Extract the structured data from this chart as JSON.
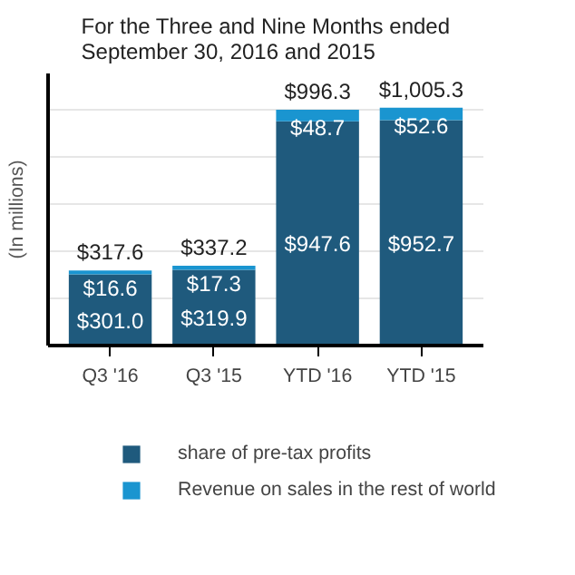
{
  "chart_data": {
    "type": "bar",
    "stacked": true,
    "title": "For the Three and Nine Months ended\nSeptember 30, 2016 and 2015",
    "ylabel": "(In millions)",
    "categories": [
      "Q3 '16",
      "Q3 '15",
      "YTD '16",
      "YTD '15"
    ],
    "series": [
      {
        "name": "share of pre-tax profits",
        "color": "#1f5a7d",
        "values": [
          301.0,
          319.9,
          947.6,
          952.7
        ],
        "value_labels": [
          "$301.0",
          "$319.9",
          "$947.6",
          "$952.7"
        ]
      },
      {
        "name": "Revenue on sales in the rest of world",
        "color": "#1a95d0",
        "values": [
          16.6,
          17.3,
          48.7,
          52.6
        ],
        "value_labels": [
          "$16.6",
          "$17.3",
          "$48.7",
          "$52.6"
        ]
      }
    ],
    "totals": [
      "$317.6",
      "$337.2",
      "$996.3",
      "$1,005.3"
    ],
    "ylim": [
      0,
      1150
    ],
    "yticks": [
      {
        "value": 200,
        "label": null
      },
      {
        "value": 400,
        "label": null
      },
      {
        "value": 600,
        "label": null
      },
      {
        "value": 800,
        "label": null
      },
      {
        "value": 1000,
        "label": null
      }
    ],
    "grid": "y",
    "tick_labels": "x",
    "legend": "bottom"
  }
}
